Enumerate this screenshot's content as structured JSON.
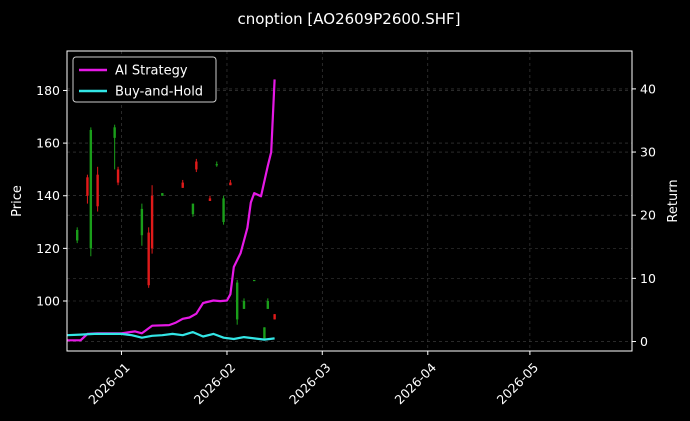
{
  "chart_data": {
    "type": "candlestick_with_lines",
    "title": "cnoption [AO2609P2600.SHF]",
    "xlabel": "",
    "ylabel_left": "Price",
    "ylabel_right": "Return",
    "xlim": [
      "2025-12-16",
      "2026-05-31"
    ],
    "ylim_left": [
      81,
      195
    ],
    "ylim_right": [
      -1.5,
      46
    ],
    "x_ticks": [
      "2026-01",
      "2026-02",
      "2026-03",
      "2026-04",
      "2026-05"
    ],
    "y_ticks_left": [
      100,
      120,
      140,
      160,
      180
    ],
    "y_ticks_right": [
      0,
      10,
      20,
      30,
      40
    ],
    "grid": true,
    "legend": "top-left",
    "colors": {
      "background": "#000000",
      "grid": "#444444",
      "up": "#1a9e1a",
      "down": "#e01a1a",
      "strategy": "#e619e6",
      "benchmark": "#33e6e6"
    },
    "candles": [
      {
        "date": "2025-12-19",
        "open": 123,
        "close": 127,
        "high": 128,
        "low": 122
      },
      {
        "date": "2025-12-22",
        "open": 147,
        "close": 140,
        "high": 148,
        "low": 137
      },
      {
        "date": "2025-12-23",
        "open": 120,
        "close": 165,
        "high": 166,
        "low": 117
      },
      {
        "date": "2025-12-25",
        "open": 148,
        "close": 136,
        "high": 151,
        "low": 134
      },
      {
        "date": "2025-12-30",
        "open": 162,
        "close": 166,
        "high": 167,
        "low": 150
      },
      {
        "date": "2025-12-31",
        "open": 150,
        "close": 145,
        "high": 151,
        "low": 144
      },
      {
        "date": "2026-01-07",
        "open": 125,
        "close": 135,
        "high": 137,
        "low": 121
      },
      {
        "date": "2026-01-09",
        "open": 126,
        "close": 106,
        "high": 128,
        "low": 105
      },
      {
        "date": "2026-01-10",
        "open": 140,
        "close": 120,
        "high": 144,
        "low": 118
      },
      {
        "date": "2026-01-13",
        "open": 140,
        "close": 141,
        "high": 141,
        "low": 140
      },
      {
        "date": "2026-01-19",
        "open": 145,
        "close": 143,
        "high": 146,
        "low": 143
      },
      {
        "date": "2026-01-22",
        "open": 133,
        "close": 137,
        "high": 137,
        "low": 132
      },
      {
        "date": "2026-01-23",
        "open": 153,
        "close": 150,
        "high": 154,
        "low": 149
      },
      {
        "date": "2026-01-27",
        "open": 139,
        "close": 138,
        "high": 140,
        "low": 138
      },
      {
        "date": "2026-01-29",
        "open": 152,
        "close": 152,
        "high": 153,
        "low": 151
      },
      {
        "date": "2026-01-31",
        "open": 130,
        "close": 139,
        "high": 140,
        "low": 129
      },
      {
        "date": "2026-02-02",
        "open": 145,
        "close": 144,
        "high": 146,
        "low": 144
      },
      {
        "date": "2026-02-04",
        "open": 93,
        "close": 107,
        "high": 108,
        "low": 91
      },
      {
        "date": "2026-02-06",
        "open": 97,
        "close": 100,
        "high": 101,
        "low": 97
      },
      {
        "date": "2026-02-09",
        "open": 108,
        "close": 108,
        "high": 108,
        "low": 108
      },
      {
        "date": "2026-02-12",
        "open": 85,
        "close": 90,
        "high": 90,
        "low": 85
      },
      {
        "date": "2026-02-13",
        "open": 97,
        "close": 100,
        "high": 101,
        "low": 97
      },
      {
        "date": "2026-02-15",
        "open": 95,
        "close": 93,
        "high": 95,
        "low": 93
      }
    ],
    "series": [
      {
        "name": "AI Strategy",
        "x": [
          "2025-12-16",
          "2025-12-20",
          "2025-12-22",
          "2025-12-25",
          "2026-01-01",
          "2026-01-05",
          "2026-01-07",
          "2026-01-10",
          "2026-01-15",
          "2026-01-17",
          "2026-01-19",
          "2026-01-21",
          "2026-01-23",
          "2026-01-25",
          "2026-01-28",
          "2026-01-30",
          "2026-02-01",
          "2026-02-02",
          "2026-02-03",
          "2026-02-05",
          "2026-02-06",
          "2026-02-07",
          "2026-02-08",
          "2026-02-09",
          "2026-02-11",
          "2026-02-13",
          "2026-02-14",
          "2026-02-15"
        ],
        "values": [
          0.2,
          0.2,
          1.2,
          1.3,
          1.3,
          1.6,
          1.3,
          2.5,
          2.6,
          3.0,
          3.6,
          3.8,
          4.4,
          6.1,
          6.5,
          6.4,
          6.5,
          7.5,
          11.8,
          14.0,
          16.0,
          18.0,
          22.0,
          23.5,
          23.0,
          27.8,
          30.0,
          41.5
        ]
      },
      {
        "name": "Buy-and-Hold",
        "x": [
          "2025-12-16",
          "2025-12-20",
          "2025-12-24",
          "2025-12-28",
          "2026-01-01",
          "2026-01-04",
          "2026-01-07",
          "2026-01-10",
          "2026-01-13",
          "2026-01-16",
          "2026-01-19",
          "2026-01-22",
          "2026-01-25",
          "2026-01-28",
          "2026-01-31",
          "2026-02-03",
          "2026-02-06",
          "2026-02-09",
          "2026-02-12",
          "2026-02-15"
        ],
        "values": [
          1.0,
          1.1,
          1.2,
          1.2,
          1.2,
          1.0,
          0.6,
          0.9,
          1.0,
          1.2,
          1.0,
          1.5,
          0.8,
          1.2,
          0.6,
          0.4,
          0.7,
          0.5,
          0.3,
          0.5
        ]
      }
    ]
  }
}
